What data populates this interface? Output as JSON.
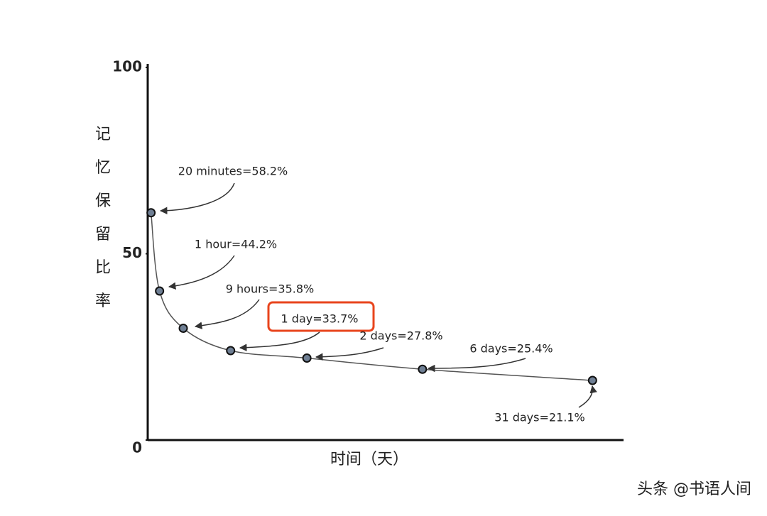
{
  "chart_data": {
    "type": "line",
    "y_label": "记忆保留比率",
    "x_label": "时间（天）",
    "x": [
      0.7,
      2.5,
      7.5,
      17.5,
      33.6,
      58,
      93.9
    ],
    "values": [
      61,
      40,
      30,
      24,
      22,
      19,
      16
    ],
    "color": "#555555",
    "xlim": [
      0,
      100
    ],
    "ylim": [
      0,
      100
    ],
    "yticks": [
      0,
      50,
      100
    ],
    "annotations": [
      "20 minutes=58.2%",
      "1 hour=44.2%",
      "9 hours=35.8%",
      "1 day=33.7%",
      "2 days=27.8%",
      "6 days=25.4%",
      "31 days=21.1%"
    ],
    "highlight": 3,
    "watermark": "头条 @书语人间"
  }
}
